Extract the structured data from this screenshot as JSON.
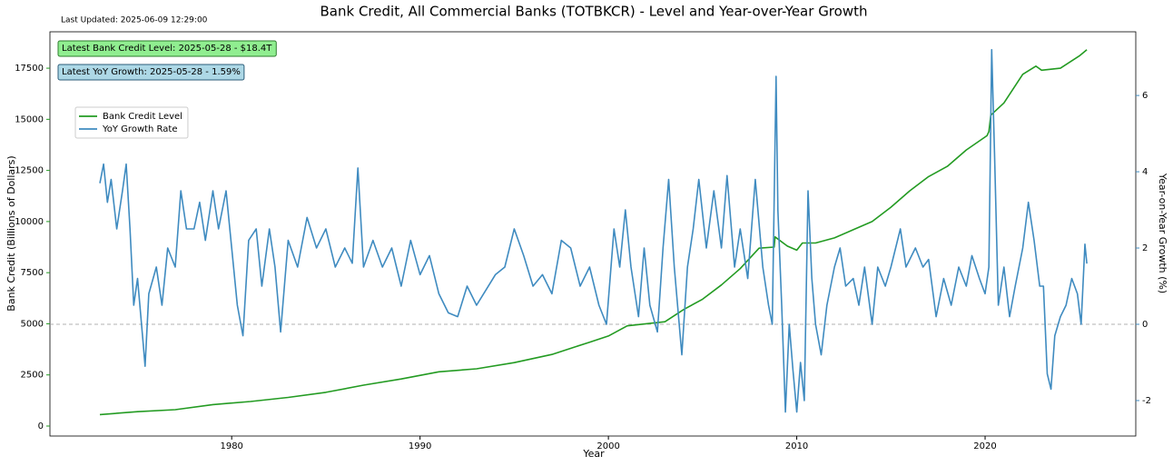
{
  "chart_data": {
    "type": "line",
    "title": "Bank Credit, All Commercial Banks (TOTBKCR) - Level and Year-over-Year Growth",
    "subtitle": "Last Updated: 2025-06-09 12:29:00",
    "xlabel": "Year",
    "ylabel": "Bank Credit (Billions of Dollars)",
    "y2label": "Year-on-Year Growth (%)",
    "annotations": [
      "Latest Bank Credit Level: 2025-05-28 - $18.4T",
      "Latest YoY Growth: 2025-05-28 - 1.59%"
    ],
    "xlim": [
      1970.35,
      2028.0
    ],
    "xticks": [
      1980,
      1990,
      2000,
      2010,
      2020
    ],
    "ylim": [
      -489,
      19280
    ],
    "yticks": [
      0,
      2500,
      5000,
      7500,
      10000,
      12500,
      15000,
      17500
    ],
    "y2lim": [
      -2.93,
      7.67
    ],
    "y2ticks": [
      -2,
      0,
      2,
      4,
      6
    ],
    "legend": "upper left",
    "zero_line": true,
    "series": [
      {
        "name": "Bank Credit Level",
        "color": "#239b22",
        "x": [
          1973.0,
          1975,
          1977,
          1979,
          1981,
          1983,
          1985,
          1987,
          1989,
          1991,
          1993,
          1995,
          1997,
          1999,
          2000,
          2001,
          2003,
          2004,
          2005,
          2006,
          2007,
          2008,
          2008.8,
          2008.85,
          2009.5,
          2010,
          2010.3,
          2011,
          2012,
          2013,
          2014,
          2015,
          2016,
          2017,
          2018,
          2019,
          2020.1,
          2020.2,
          2020.3,
          2021,
          2022,
          2022.7,
          2023,
          2024,
          2025,
          2025.4
        ],
        "values": [
          560,
          700,
          800,
          1050,
          1200,
          1400,
          1650,
          2000,
          2300,
          2650,
          2800,
          3100,
          3500,
          4100,
          4400,
          4900,
          5100,
          5700,
          6200,
          6900,
          7700,
          8700,
          8750,
          9250,
          8800,
          8600,
          8950,
          8950,
          9200,
          9600,
          10000,
          10700,
          11500,
          12200,
          12700,
          13500,
          14200,
          14400,
          15200,
          15800,
          17200,
          17600,
          17400,
          17500,
          18100,
          18400
        ]
      },
      {
        "name": "YoY Growth Rate",
        "color": "#3f8bc0",
        "axis": "y2",
        "x": [
          1973.0,
          1973.2,
          1973.4,
          1973.6,
          1973.9,
          1974.2,
          1974.4,
          1974.6,
          1974.8,
          1975.0,
          1975.3,
          1975.4,
          1975.6,
          1976,
          1976.3,
          1976.6,
          1977,
          1977.3,
          1977.6,
          1978,
          1978.3,
          1978.6,
          1979,
          1979.3,
          1979.7,
          1980,
          1980.3,
          1980.6,
          1980.9,
          1981.3,
          1981.6,
          1982.0,
          1982.3,
          1982.6,
          1983,
          1983.5,
          1984,
          1984.5,
          1985,
          1985.5,
          1986,
          1986.4,
          1986.7,
          1987,
          1987.5,
          1988,
          1988.5,
          1989,
          1989.5,
          1990,
          1990.5,
          1991,
          1991.5,
          1992,
          1992.5,
          1993,
          1993.5,
          1994,
          1994.5,
          1995,
          1995.5,
          1996,
          1996.5,
          1997,
          1997.5,
          1998,
          1998.5,
          1999,
          1999.5,
          1999.9,
          2000.3,
          2000.6,
          2000.9,
          2001.2,
          2001.6,
          2001.9,
          2002.2,
          2002.6,
          2002.9,
          2003.2,
          2003.5,
          2003.9,
          2004.2,
          2004.5,
          2004.8,
          2005.2,
          2005.6,
          2006,
          2006.3,
          2006.7,
          2007.0,
          2007.4,
          2007.8,
          2008.2,
          2008.5,
          2008.7,
          2008.9,
          2009.0,
          2009.2,
          2009.4,
          2009.6,
          2009.8,
          2010.0,
          2010.2,
          2010.4,
          2010.6,
          2010.8,
          2011.0,
          2011.3,
          2011.6,
          2012,
          2012.3,
          2012.6,
          2013,
          2013.3,
          2013.6,
          2014,
          2014.3,
          2014.7,
          2015,
          2015.5,
          2015.8,
          2016.3,
          2016.7,
          2017,
          2017.4,
          2017.8,
          2018.2,
          2018.6,
          2019,
          2019.3,
          2019.7,
          2020.0,
          2020.2,
          2020.35,
          2020.5,
          2020.7,
          2021.0,
          2021.3,
          2021.6,
          2022.0,
          2022.3,
          2022.6,
          2022.9,
          2023.1,
          2023.3,
          2023.5,
          2023.7,
          2024.0,
          2024.3,
          2024.6,
          2024.9,
          2025.1,
          2025.3,
          2025.4
        ],
        "values": [
          3.7,
          4.2,
          3.2,
          3.8,
          2.5,
          3.5,
          4.2,
          2.5,
          0.5,
          1.2,
          -0.5,
          -1.1,
          0.8,
          1.5,
          0.5,
          2.0,
          1.5,
          3.5,
          2.5,
          2.5,
          3.2,
          2.2,
          3.5,
          2.5,
          3.5,
          2.0,
          0.5,
          -0.3,
          2.2,
          2.5,
          1.0,
          2.5,
          1.5,
          -0.2,
          2.2,
          1.5,
          2.8,
          2.0,
          2.5,
          1.5,
          2.0,
          1.6,
          4.1,
          1.5,
          2.2,
          1.5,
          2.0,
          1.0,
          2.2,
          1.3,
          1.8,
          0.8,
          0.3,
          0.2,
          1.0,
          0.5,
          0.9,
          1.3,
          1.5,
          2.5,
          1.8,
          1.0,
          1.3,
          0.8,
          2.2,
          2.0,
          1.0,
          1.5,
          0.5,
          0.0,
          2.5,
          1.5,
          3.0,
          1.5,
          0.2,
          2.0,
          0.5,
          -0.2,
          2.0,
          3.8,
          1.5,
          -0.8,
          1.5,
          2.5,
          3.8,
          2.0,
          3.5,
          2.0,
          3.9,
          1.5,
          2.5,
          1.2,
          3.8,
          1.5,
          0.5,
          0.0,
          6.5,
          3.0,
          0.5,
          -2.3,
          0.0,
          -1.2,
          -2.3,
          -1.0,
          -2.0,
          3.5,
          1.2,
          0.0,
          -0.8,
          0.5,
          1.5,
          2.0,
          1.0,
          1.2,
          0.5,
          1.5,
          0.0,
          1.5,
          1.0,
          1.5,
          2.5,
          1.5,
          2.0,
          1.5,
          1.7,
          0.2,
          1.2,
          0.5,
          1.5,
          1.0,
          1.8,
          1.2,
          0.8,
          1.5,
          7.2,
          4.5,
          0.5,
          1.5,
          0.2,
          1.0,
          2.0,
          3.2,
          2.2,
          1.0,
          1.0,
          -1.3,
          -1.7,
          -0.3,
          0.2,
          0.5,
          1.2,
          0.8,
          0.0,
          2.1,
          1.59
        ]
      }
    ]
  }
}
